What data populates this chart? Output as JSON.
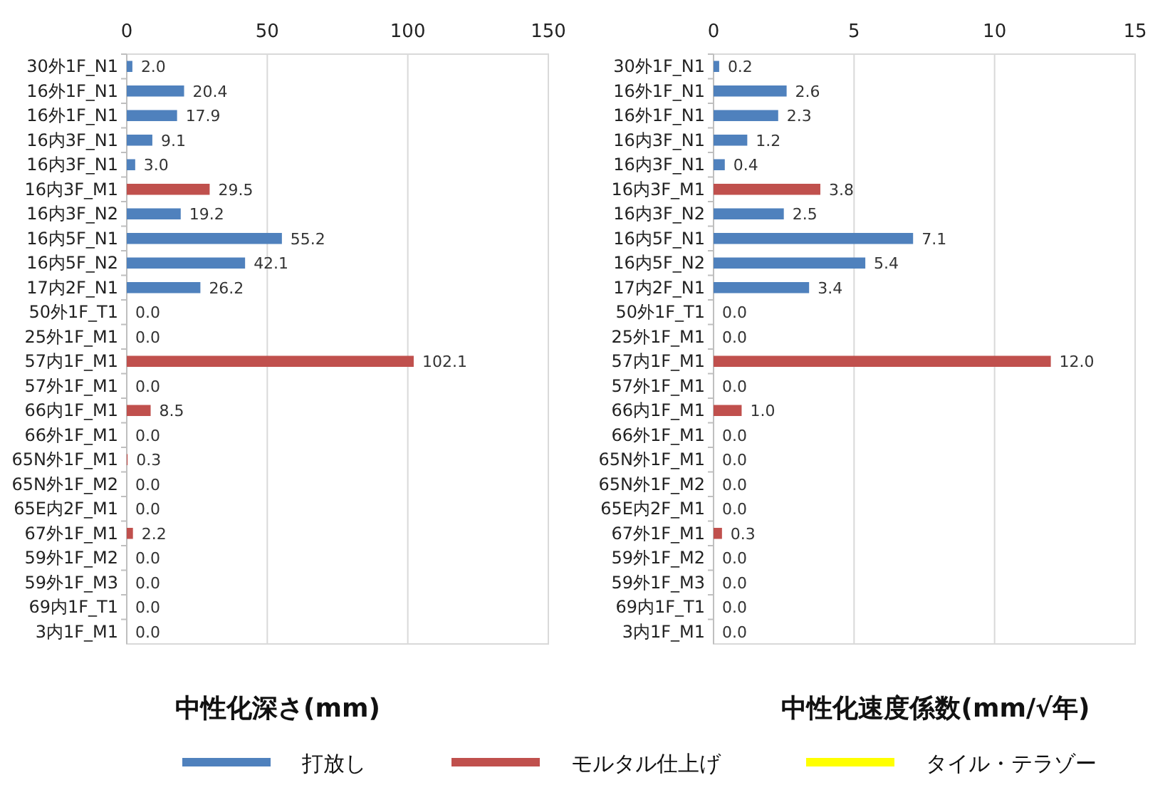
{
  "chart_data": [
    {
      "type": "bar",
      "orientation": "horizontal",
      "xlabel": "中性化深さ(mm)",
      "xlim": [
        0,
        150
      ],
      "xticks": [
        0,
        50,
        100,
        150
      ],
      "grid": "x",
      "legend": "bottom",
      "categories": [
        "30外1F_N1",
        "16外1F_N1",
        "16外1F_N1",
        "16内3F_N1",
        "16内3F_N1",
        "16内3F_M1",
        "16内3F_N2",
        "16内5F_N1",
        "16内5F_N2",
        "17内2F_N1",
        "50外1F_T1",
        "25外1F_M1",
        "57内1F_M1",
        "57外1F_M1",
        "66内1F_M1",
        "66外1F_M1",
        "65N外1F_M1",
        "65N外1F_M2",
        "65E内2F_M1",
        "67外1F_M1",
        "59外1F_M2",
        "59外1F_M3",
        "69内1F_T1",
        "3内1F_M1"
      ],
      "series": [
        {
          "name": "打放し",
          "color": "#4f81bd",
          "values": [
            2.0,
            20.4,
            17.9,
            9.1,
            3.0,
            null,
            19.2,
            55.2,
            42.1,
            26.2,
            null,
            null,
            null,
            null,
            null,
            null,
            null,
            null,
            null,
            null,
            null,
            null,
            null,
            null
          ],
          "value_labels": [
            "2.0",
            "20.4",
            "17.9",
            "9.1",
            "3.0",
            null,
            "19.2",
            "55.2",
            "42.1",
            "26.2",
            null,
            null,
            null,
            null,
            null,
            null,
            null,
            null,
            null,
            null,
            null,
            null,
            null,
            null
          ]
        },
        {
          "name": "モルタル仕上げ",
          "color": "#c0504d",
          "values": [
            null,
            null,
            null,
            null,
            null,
            29.5,
            null,
            null,
            null,
            null,
            null,
            0.0,
            102.1,
            0.0,
            8.5,
            0.0,
            0.3,
            0.0,
            0.0,
            2.2,
            0.0,
            0.0,
            null,
            0.0
          ],
          "value_labels": [
            null,
            null,
            null,
            null,
            null,
            "29.5",
            null,
            null,
            null,
            null,
            null,
            "0.0",
            "102.1",
            "0.0",
            "8.5",
            "0.0",
            "0.3",
            "0.0",
            "0.0",
            "2.2",
            "0.0",
            "0.0",
            null,
            "0.0"
          ]
        },
        {
          "name": "タイル・テラゾー",
          "color": "#ffff00",
          "values": [
            null,
            null,
            null,
            null,
            null,
            null,
            null,
            null,
            null,
            null,
            0.0,
            null,
            null,
            null,
            null,
            null,
            null,
            null,
            null,
            null,
            null,
            null,
            0.0,
            null
          ],
          "value_labels": [
            null,
            null,
            null,
            null,
            null,
            null,
            null,
            null,
            null,
            null,
            "0.0",
            null,
            null,
            null,
            null,
            null,
            null,
            null,
            null,
            null,
            null,
            null,
            "0.0",
            null
          ]
        }
      ]
    },
    {
      "type": "bar",
      "orientation": "horizontal",
      "xlabel": "中性化速度係数(mm/√年)",
      "xlim": [
        0,
        15
      ],
      "xticks": [
        0,
        5,
        10,
        15
      ],
      "grid": "x",
      "categories": [
        "30外1F_N1",
        "16外1F_N1",
        "16外1F_N1",
        "16内3F_N1",
        "16内3F_N1",
        "16内3F_M1",
        "16内3F_N2",
        "16内5F_N1",
        "16内5F_N2",
        "17内2F_N1",
        "50外1F_T1",
        "25外1F_M1",
        "57内1F_M1",
        "57外1F_M1",
        "66内1F_M1",
        "66外1F_M1",
        "65N外1F_M1",
        "65N外1F_M2",
        "65E内2F_M1",
        "67外1F_M1",
        "59外1F_M2",
        "59外1F_M3",
        "69内1F_T1",
        "3内1F_M1"
      ],
      "series": [
        {
          "color": "#4f81bd",
          "values": [
            0.2,
            2.6,
            2.3,
            1.2,
            0.4,
            null,
            2.5,
            7.1,
            5.4,
            3.4,
            null,
            null,
            null,
            null,
            null,
            null,
            null,
            null,
            null,
            null,
            null,
            null,
            null,
            null
          ],
          "value_labels": [
            "0.2",
            "2.6",
            "2.3",
            "1.2",
            "0.4",
            null,
            "2.5",
            "7.1",
            "5.4",
            "3.4",
            null,
            null,
            null,
            null,
            null,
            null,
            null,
            null,
            null,
            null,
            null,
            null,
            null,
            null
          ]
        },
        {
          "color": "#c0504d",
          "values": [
            null,
            null,
            null,
            null,
            null,
            3.8,
            null,
            null,
            null,
            null,
            null,
            0.0,
            12.0,
            0.0,
            1.0,
            0.0,
            0.0,
            0.0,
            0.0,
            0.3,
            0.0,
            0.0,
            null,
            0.0
          ],
          "value_labels": [
            null,
            null,
            null,
            null,
            null,
            "3.8",
            null,
            null,
            null,
            null,
            null,
            "0.0",
            "12.0",
            "0.0",
            "1.0",
            "0.0",
            "0.0",
            "0.0",
            "0.0",
            "0.3",
            "0.0",
            "0.0",
            null,
            "0.0"
          ]
        },
        {
          "color": "#ffff00",
          "values": [
            null,
            null,
            null,
            null,
            null,
            null,
            null,
            null,
            null,
            null,
            0.0,
            null,
            null,
            null,
            null,
            null,
            null,
            null,
            null,
            null,
            null,
            null,
            0.0,
            null
          ],
          "value_labels": [
            null,
            null,
            null,
            null,
            null,
            null,
            null,
            null,
            null,
            null,
            "0.0",
            null,
            null,
            null,
            null,
            null,
            null,
            null,
            null,
            null,
            null,
            null,
            "0.0",
            null
          ]
        }
      ]
    }
  ]
}
